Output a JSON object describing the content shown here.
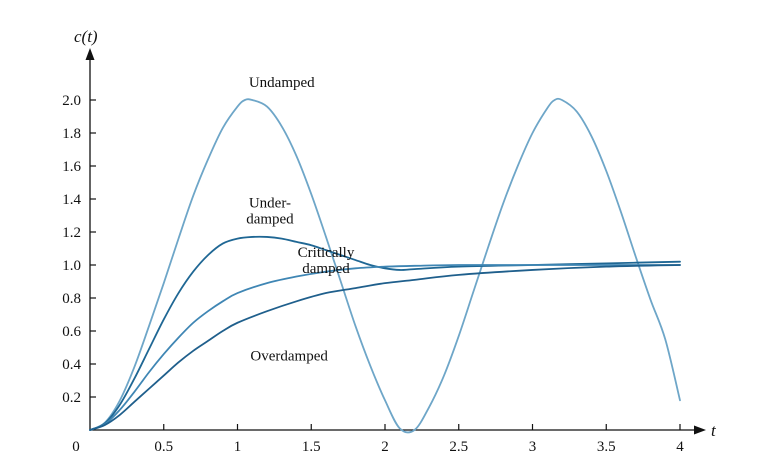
{
  "chart_data": {
    "type": "line",
    "title": "",
    "xlabel": "t",
    "ylabel": "c(t)",
    "xlim": [
      0,
      4
    ],
    "ylim": [
      0,
      2.2
    ],
    "grid": false,
    "x_ticks": [
      0.5,
      1,
      1.5,
      2,
      2.5,
      3,
      3.5,
      4
    ],
    "x_tick_labels": [
      "0.5",
      "1",
      "1.5",
      "2",
      "2.5",
      "3",
      "3.5",
      "4"
    ],
    "y_ticks": [
      0.2,
      0.4,
      0.6,
      0.8,
      1.0,
      1.2,
      1.4,
      1.6,
      1.8,
      2.0
    ],
    "y_tick_labels": [
      "0.2",
      "0.4",
      "0.6",
      "0.8",
      "1.0",
      "1.2",
      "1.4",
      "1.6",
      "1.8",
      "2.0"
    ],
    "origin_label": "0",
    "annotations": [
      {
        "lines": [
          "Undamped"
        ],
        "x": 1.3,
        "y": 2.08
      },
      {
        "lines": [
          "Under-",
          "damped"
        ],
        "x": 1.22,
        "y": 1.35
      },
      {
        "lines": [
          "Critically",
          "damped"
        ],
        "x": 1.6,
        "y": 1.05
      },
      {
        "lines": [
          "Overdamped"
        ],
        "x": 1.35,
        "y": 0.42
      }
    ],
    "series": [
      {
        "name": "Undamped",
        "color": "#6ea6c8",
        "x": [
          0,
          0.1,
          0.2,
          0.3,
          0.4,
          0.5,
          0.6,
          0.7,
          0.8,
          0.9,
          1.0,
          1.05,
          1.1,
          1.2,
          1.3,
          1.4,
          1.5,
          1.6,
          1.7,
          1.8,
          1.9,
          2.0,
          2.1,
          2.2,
          2.3,
          2.4,
          2.5,
          2.6,
          2.7,
          2.8,
          2.9,
          3.0,
          3.1,
          3.15,
          3.2,
          3.3,
          3.4,
          3.5,
          3.6,
          3.7,
          3.8,
          3.9,
          4.0
        ],
        "y": [
          0,
          0.044,
          0.175,
          0.38,
          0.63,
          0.89,
          1.16,
          1.42,
          1.64,
          1.83,
          1.96,
          2.0,
          2.0,
          1.96,
          1.84,
          1.66,
          1.43,
          1.17,
          0.9,
          0.63,
          0.39,
          0.18,
          0.01,
          0.0,
          0.14,
          0.33,
          0.57,
          0.84,
          1.11,
          1.37,
          1.6,
          1.8,
          1.95,
          2.0,
          2.0,
          1.93,
          1.78,
          1.57,
          1.32,
          1.05,
          0.79,
          0.55,
          0.18
        ]
      },
      {
        "name": "Underdamped",
        "color": "#1f6794",
        "x": [
          0,
          0.1,
          0.2,
          0.3,
          0.4,
          0.5,
          0.6,
          0.7,
          0.8,
          0.9,
          1.0,
          1.1,
          1.2,
          1.3,
          1.4,
          1.5,
          1.6,
          1.7,
          1.8,
          1.9,
          2.0,
          2.1,
          2.2,
          2.5,
          3.0,
          3.5,
          4.0
        ],
        "y": [
          0,
          0.04,
          0.15,
          0.31,
          0.49,
          0.67,
          0.83,
          0.96,
          1.06,
          1.13,
          1.16,
          1.17,
          1.17,
          1.16,
          1.14,
          1.12,
          1.09,
          1.06,
          1.03,
          1.0,
          0.98,
          0.97,
          0.975,
          0.99,
          1.0,
          1.01,
          1.02
        ]
      },
      {
        "name": "Critically damped",
        "color": "#3f86b4",
        "x": [
          0,
          0.1,
          0.2,
          0.3,
          0.4,
          0.5,
          0.6,
          0.7,
          0.8,
          0.9,
          1.0,
          1.2,
          1.4,
          1.6,
          1.8,
          2.0,
          2.2,
          2.5,
          3.0,
          3.5,
          4.0
        ],
        "y": [
          0,
          0.035,
          0.12,
          0.23,
          0.35,
          0.46,
          0.56,
          0.65,
          0.72,
          0.78,
          0.83,
          0.89,
          0.93,
          0.96,
          0.98,
          0.99,
          0.995,
          1.0,
          1.0,
          1.0,
          1.0
        ]
      },
      {
        "name": "Overdamped",
        "color": "#1f5f8c",
        "x": [
          0,
          0.1,
          0.2,
          0.3,
          0.4,
          0.5,
          0.6,
          0.7,
          0.8,
          0.9,
          1.0,
          1.2,
          1.4,
          1.6,
          1.8,
          2.0,
          2.2,
          2.5,
          3.0,
          3.5,
          4.0
        ],
        "y": [
          0,
          0.03,
          0.09,
          0.17,
          0.25,
          0.33,
          0.41,
          0.48,
          0.54,
          0.6,
          0.65,
          0.72,
          0.78,
          0.83,
          0.86,
          0.89,
          0.91,
          0.94,
          0.97,
          0.99,
          1.0
        ]
      }
    ]
  }
}
